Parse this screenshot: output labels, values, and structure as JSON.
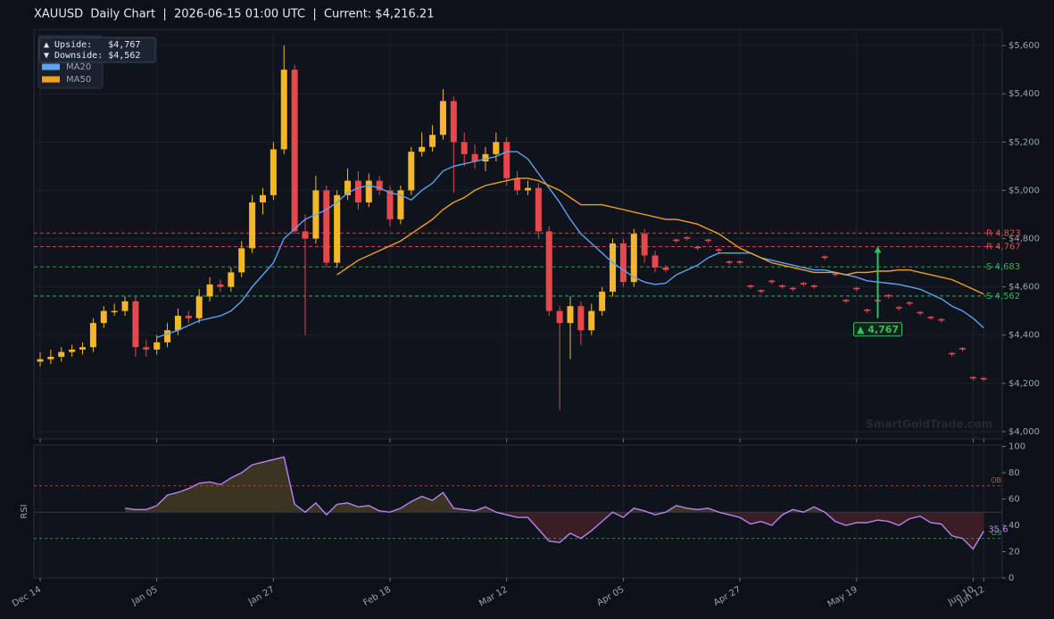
{
  "chart_data": [
    {
      "type": "candlestick",
      "title": "XAUUSD  Daily Chart  |  2026-06-15 01:00 UTC  |  Current: $4,216.21",
      "categories": [
        "Dec 14",
        null,
        null,
        null,
        null,
        null,
        null,
        null,
        null,
        null,
        null,
        "Jan 05",
        null,
        null,
        null,
        null,
        null,
        null,
        null,
        null,
        null,
        null,
        "Jan 27",
        null,
        null,
        null,
        null,
        null,
        null,
        null,
        null,
        null,
        null,
        "Feb 18",
        null,
        null,
        null,
        null,
        null,
        null,
        null,
        null,
        null,
        null,
        "Mar 12",
        null,
        null,
        null,
        null,
        null,
        null,
        null,
        null,
        null,
        null,
        "Apr 05",
        null,
        null,
        null,
        null,
        null,
        null,
        null,
        null,
        null,
        null,
        "Apr 27",
        null,
        null,
        null,
        null,
        null,
        null,
        null,
        null,
        null,
        null,
        "May 19",
        null,
        null,
        null,
        null,
        null,
        null,
        null,
        null,
        null,
        null,
        "Jun 10",
        "Jun 12"
      ],
      "ohlc": [
        [
          4290,
          4330,
          4270,
          4300
        ],
        [
          4300,
          4340,
          4280,
          4310
        ],
        [
          4310,
          4350,
          4290,
          4330
        ],
        [
          4330,
          4360,
          4310,
          4340
        ],
        [
          4340,
          4370,
          4320,
          4350
        ],
        [
          4350,
          4470,
          4330,
          4450
        ],
        [
          4450,
          4520,
          4430,
          4500
        ],
        [
          4500,
          4530,
          4480,
          4500
        ],
        [
          4500,
          4560,
          4480,
          4540
        ],
        [
          4540,
          4560,
          4310,
          4350
        ],
        [
          4350,
          4380,
          4310,
          4340
        ],
        [
          4340,
          4400,
          4320,
          4370
        ],
        [
          4370,
          4450,
          4350,
          4420
        ],
        [
          4420,
          4510,
          4400,
          4480
        ],
        [
          4480,
          4500,
          4450,
          4470
        ],
        [
          4470,
          4590,
          4450,
          4560
        ],
        [
          4560,
          4640,
          4540,
          4610
        ],
        [
          4610,
          4630,
          4580,
          4600
        ],
        [
          4600,
          4680,
          4580,
          4660
        ],
        [
          4660,
          4790,
          4640,
          4760
        ],
        [
          4760,
          4980,
          4740,
          4950
        ],
        [
          4950,
          5010,
          4900,
          4980
        ],
        [
          4980,
          5200,
          4960,
          5170
        ],
        [
          5170,
          5600,
          5150,
          5500
        ],
        [
          5500,
          5520,
          4820,
          4830
        ],
        [
          4830,
          4900,
          4400,
          4800
        ],
        [
          4800,
          5060,
          4780,
          5000
        ],
        [
          5000,
          5020,
          4680,
          4700
        ],
        [
          4700,
          5000,
          4680,
          4980
        ],
        [
          4980,
          5090,
          4960,
          5040
        ],
        [
          5040,
          5080,
          4920,
          4950
        ],
        [
          4950,
          5070,
          4930,
          5040
        ],
        [
          5040,
          5060,
          4980,
          5000
        ],
        [
          5000,
          5020,
          4850,
          4880
        ],
        [
          4880,
          5020,
          4860,
          5000
        ],
        [
          5000,
          5180,
          4980,
          5160
        ],
        [
          5160,
          5240,
          5140,
          5180
        ],
        [
          5180,
          5270,
          5160,
          5230
        ],
        [
          5230,
          5420,
          5210,
          5370
        ],
        [
          5370,
          5390,
          4990,
          5200
        ],
        [
          5200,
          5240,
          5100,
          5150
        ],
        [
          5150,
          5190,
          5090,
          5120
        ],
        [
          5120,
          5180,
          5080,
          5150
        ],
        [
          5150,
          5240,
          5120,
          5200
        ],
        [
          5200,
          5220,
          5020,
          5050
        ],
        [
          5050,
          5080,
          4980,
          5000
        ],
        [
          5000,
          5040,
          4980,
          5010
        ],
        [
          5010,
          5030,
          4800,
          4830
        ],
        [
          4830,
          4850,
          4480,
          4500
        ],
        [
          4500,
          4520,
          4090,
          4450
        ],
        [
          4450,
          4560,
          4300,
          4520
        ],
        [
          4520,
          4540,
          4360,
          4420
        ],
        [
          4420,
          4530,
          4400,
          4500
        ],
        [
          4500,
          4600,
          4480,
          4580
        ],
        [
          4580,
          4800,
          4560,
          4780
        ],
        [
          4780,
          4800,
          4600,
          4620
        ],
        [
          4620,
          4840,
          4600,
          4820
        ],
        [
          4820,
          4840,
          4700,
          4730
        ],
        [
          4730,
          4750,
          4660,
          4680
        ],
        [
          4680,
          4690,
          4660,
          4670
        ],
        [
          4796,
          4800,
          4782,
          4790
        ],
        [
          4806,
          4810,
          4792,
          4800
        ],
        [
          4766,
          4770,
          4752,
          4760
        ],
        [
          4796,
          4800,
          4782,
          4790
        ],
        [
          4756,
          4760,
          4742,
          4750
        ],
        [
          4706,
          4710,
          4692,
          4700
        ],
        [
          4706,
          4710,
          4692,
          4700
        ],
        [
          4606,
          4610,
          4592,
          4600
        ],
        [
          4586,
          4590,
          4572,
          4580
        ],
        [
          4626,
          4630,
          4612,
          4620
        ],
        [
          4606,
          4610,
          4592,
          4600
        ],
        [
          4596,
          4600,
          4582,
          4590
        ],
        [
          4616,
          4620,
          4602,
          4610
        ],
        [
          4606,
          4610,
          4592,
          4600
        ],
        [
          4726,
          4730,
          4712,
          4720
        ],
        [
          4656,
          4660,
          4642,
          4650
        ],
        [
          4546,
          4550,
          4532,
          4540
        ],
        [
          4596,
          4600,
          4582,
          4590
        ],
        [
          4506,
          4510,
          4492,
          4500
        ],
        [
          4546,
          4550,
          4532,
          4540
        ],
        [
          4566,
          4570,
          4552,
          4560
        ],
        [
          4516,
          4520,
          4502,
          4510
        ],
        [
          4536,
          4540,
          4522,
          4530
        ],
        [
          4496,
          4500,
          4482,
          4490
        ],
        [
          4476,
          4480,
          4462,
          4470
        ],
        [
          4466,
          4470,
          4452,
          4460
        ],
        [
          4326,
          4330,
          4312,
          4320
        ],
        [
          4346,
          4350,
          4332,
          4340
        ],
        [
          4226,
          4230,
          4212,
          4220
        ],
        [
          4222,
          4226,
          4210,
          4216.21
        ]
      ],
      "up_color": "#f5b72a",
      "down_color": "#e5484d",
      "series": [
        {
          "name": "MA20",
          "color": "#5ea2f0",
          "values": [
            null,
            null,
            null,
            null,
            null,
            null,
            null,
            null,
            null,
            null,
            null,
            4390,
            4405,
            4420,
            4440,
            4460,
            4470,
            4480,
            4500,
            4540,
            4600,
            4650,
            4700,
            4800,
            4840,
            4880,
            4900,
            4920,
            4950,
            4990,
            5010,
            5020,
            5010,
            4990,
            4980,
            4960,
            5000,
            5030,
            5080,
            5100,
            5110,
            5120,
            5130,
            5140,
            5160,
            5160,
            5130,
            5070,
            5010,
            4950,
            4880,
            4820,
            4780,
            4740,
            4700,
            4670,
            4640,
            4620,
            4610,
            4615,
            4650,
            4670,
            4690,
            4720,
            4740,
            4740,
            4740,
            4740,
            4720,
            4710,
            4700,
            4690,
            4680,
            4670,
            4670,
            4660,
            4650,
            4640,
            4625,
            4620,
            4615,
            4610,
            4600,
            4590,
            4570,
            4550,
            4520,
            4500,
            4470,
            4430
          ]
        },
        {
          "name": "MA50",
          "color": "#f0a020",
          "values": [
            null,
            null,
            null,
            null,
            null,
            null,
            null,
            null,
            null,
            null,
            null,
            null,
            null,
            null,
            null,
            null,
            null,
            null,
            null,
            null,
            null,
            null,
            null,
            null,
            null,
            null,
            null,
            null,
            4650,
            4680,
            4710,
            4730,
            4750,
            4770,
            4790,
            4820,
            4850,
            4880,
            4920,
            4950,
            4970,
            5000,
            5020,
            5030,
            5040,
            5050,
            5050,
            5040,
            5020,
            5000,
            4970,
            4940,
            4940,
            4940,
            4930,
            4920,
            4910,
            4900,
            4890,
            4880,
            4880,
            4870,
            4860,
            4840,
            4820,
            4790,
            4760,
            4740,
            4720,
            4700,
            4690,
            4680,
            4670,
            4660,
            4660,
            4660,
            4650,
            4660,
            4660,
            4665,
            4665,
            4670,
            4670,
            4660,
            4650,
            4640,
            4630,
            4610,
            4590,
            4570
          ]
        }
      ],
      "levels": [
        {
          "label": "R 4,823",
          "value": 4823,
          "color": "#d9534f"
        },
        {
          "label": "R 4,767",
          "value": 4767,
          "color": "#d9534f"
        },
        {
          "label": "S 4,683",
          "value": 4683,
          "color": "#2fb45a"
        },
        {
          "label": "S 4,562",
          "value": 4562,
          "color": "#2fb45a"
        }
      ],
      "target": {
        "label": "▲ 4,767",
        "value": 4767,
        "from": 4470,
        "color": "#2fc060"
      },
      "upside_label": "▲ Upside:   $4,767",
      "downside_label": "▼ Downside: $4,562",
      "watermark": "SmartGoldTrade.com",
      "ylim": [
        3970,
        5667
      ],
      "yticks": [
        {
          "value": 4000,
          "label": "$4,000"
        },
        {
          "value": 4200,
          "label": "$4,200"
        },
        {
          "value": 4400,
          "label": "$4,400"
        },
        {
          "value": 4600,
          "label": "$4,600"
        },
        {
          "value": 4800,
          "label": "$4,800"
        },
        {
          "value": 5000,
          "label": "$5,000"
        },
        {
          "value": 5200,
          "label": "$5,200"
        },
        {
          "value": 5400,
          "label": "$5,400"
        },
        {
          "value": 5600,
          "label": "$5,600"
        }
      ],
      "grid": true,
      "legend": "upper left"
    },
    {
      "type": "line",
      "ylabel": "RSI",
      "color": "#b982f5",
      "values": [
        null,
        null,
        null,
        null,
        null,
        null,
        null,
        null,
        53,
        52,
        52,
        55,
        63,
        65,
        68,
        72,
        73,
        71,
        76,
        80,
        86,
        88,
        90,
        92,
        56,
        50,
        57,
        48,
        56,
        57,
        54,
        55,
        51,
        50,
        53,
        58,
        62,
        59,
        65,
        53,
        52,
        51,
        54,
        50,
        48,
        46,
        46,
        37,
        28,
        27,
        34,
        30,
        36,
        43,
        50,
        46,
        53,
        51,
        48,
        50,
        55,
        53,
        52,
        53,
        50,
        48,
        46,
        41,
        43,
        40,
        48,
        52,
        50,
        54,
        50,
        43,
        40,
        42,
        42,
        44,
        43,
        40,
        45,
        47,
        42,
        41,
        32,
        30,
        22,
        35.6
      ],
      "ylim": [
        0,
        101
      ],
      "yticks": [
        0,
        20,
        40,
        60,
        80,
        100
      ],
      "midline": 50,
      "overbought": {
        "value": 70,
        "label": "OB",
        "color": "#c0504d"
      },
      "oversold": {
        "value": 30,
        "label": "OS",
        "color": "#2fb45a"
      },
      "above_color": "#3a3420",
      "below_color": "#3a1e24"
    }
  ]
}
